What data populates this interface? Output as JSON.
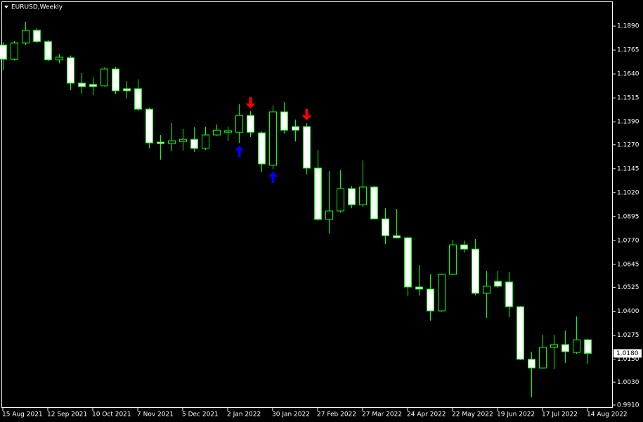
{
  "chart_data": {
    "type": "candlestick",
    "title": "EURUSD,Weekly",
    "categories": [
      "15 Aug 2021",
      null,
      null,
      null,
      "12 Sep 2021",
      null,
      null,
      null,
      "10 Oct 2021",
      null,
      null,
      null,
      "7 Nov 2021",
      null,
      null,
      null,
      "5 Dec 2021",
      null,
      null,
      null,
      "2 Jan 2022",
      null,
      null,
      null,
      "30 Jan 2022",
      null,
      null,
      null,
      "27 Feb 2022",
      null,
      null,
      null,
      "27 Mar 2022",
      null,
      null,
      null,
      "24 Apr 2022",
      null,
      null,
      null,
      "22 May 2022",
      null,
      null,
      null,
      "19 Jun 2022",
      null,
      null,
      null,
      "17 Jul 2022",
      null,
      null,
      null,
      "14 Aug 2022"
    ],
    "open": [
      1.1791,
      1.1717,
      1.1802,
      1.1868,
      1.1809,
      1.1714,
      1.1725,
      1.1592,
      1.1585,
      1.1578,
      1.1666,
      1.1563,
      1.1563,
      1.1456,
      1.1284,
      1.1276,
      1.1287,
      1.1298,
      1.1251,
      1.1321,
      1.1335,
      1.1335,
      1.1423,
      1.1332,
      1.1163,
      1.1442,
      1.1365,
      1.1365,
      1.1148,
      1.088,
      1.0924,
      1.1041,
      1.0957,
      1.1049,
      1.0883,
      1.0795,
      1.0784,
      1.0527,
      1.0516,
      1.0402,
      1.0593,
      1.0747,
      1.0725,
      1.0494,
      1.0556,
      1.0553,
      1.0424,
      1.0149,
      1.0104,
      1.0211,
      1.0226,
      1.0185,
      1.0251
    ],
    "high": [
      1.1806,
      1.1813,
      1.1912,
      1.1879,
      1.1817,
      1.1743,
      1.1736,
      1.1644,
      1.1622,
      1.1673,
      1.1677,
      1.1603,
      1.1611,
      1.1464,
      1.1321,
      1.1383,
      1.1354,
      1.1361,
      1.1365,
      1.1376,
      1.1365,
      1.1482,
      1.1445,
      1.1339,
      1.1475,
      1.1493,
      1.1401,
      1.1383,
      1.1243,
      1.1133,
      1.1137,
      1.1056,
      1.1188,
      1.1056,
      1.0938,
      1.0935,
      1.0788,
      1.0641,
      1.0593,
      1.0597,
      1.0773,
      1.0769,
      1.0777,
      1.0611,
      1.0611,
      1.0604,
      1.0428,
      1.0189,
      1.0277,
      1.0277,
      1.0299,
      1.0373,
      1.0255
    ],
    "low": [
      1.1659,
      1.171,
      1.1791,
      1.1802,
      1.1706,
      1.1695,
      1.1556,
      1.1537,
      1.153,
      1.1574,
      1.1534,
      1.1512,
      1.1445,
      1.1251,
      1.1192,
      1.1236,
      1.124,
      1.1232,
      1.1243,
      1.1317,
      1.1291,
      1.128,
      1.131,
      1.1126,
      1.1144,
      1.1328,
      1.1287,
      1.1115,
      1.0872,
      1.0806,
      1.0916,
      1.0938,
      1.0946,
      1.088,
      1.0751,
      1.078,
      1.0479,
      1.0483,
      1.0351,
      1.0398,
      1.0589,
      1.0707,
      1.0483,
      1.0365,
      1.0523,
      1.0369,
      1.0145,
      0.995,
      1.0101,
      1.0097,
      1.013,
      1.0178,
      1.0126
    ],
    "close": [
      1.1717,
      1.1802,
      1.1868,
      1.1809,
      1.1714,
      1.1728,
      1.1592,
      1.1574,
      1.1574,
      1.1666,
      1.1552,
      1.1552,
      1.1456,
      1.128,
      1.1276,
      1.1291,
      1.1298,
      1.1251,
      1.1321,
      1.1346,
      1.1343,
      1.1423,
      1.1335,
      1.117,
      1.1442,
      1.1346,
      1.1346,
      1.1148,
      1.088,
      1.0924,
      1.1041,
      1.0957,
      1.1049,
      1.0883,
      1.0795,
      1.0784,
      1.0527,
      1.0516,
      1.0402,
      1.0593,
      1.0747,
      1.0725,
      1.0494,
      1.0531,
      1.0531,
      1.0424,
      1.0149,
      1.0104,
      1.0211,
      1.0226,
      1.0189,
      1.0251,
      1.018
    ],
    "up_fill": "#000000",
    "down_fill": "#ffffff",
    "wick_color": "#00ff00",
    "signals_up": [
      21,
      24
    ],
    "signals_up_color": "#0000ff",
    "signals_down": [
      22,
      27
    ],
    "signals_down_color": "#ff0000",
    "ylim": [
      0.9895,
      1.2019
    ],
    "yticks": [
      {
        "value": 1.189,
        "label": "1.1890"
      },
      {
        "value": 1.1765,
        "label": "1.1765"
      },
      {
        "value": 1.164,
        "label": "1.1640"
      },
      {
        "value": 1.1515,
        "label": "1.1515"
      },
      {
        "value": 1.139,
        "label": "1.1390"
      },
      {
        "value": 1.127,
        "label": "1.1270"
      },
      {
        "value": 1.1145,
        "label": "1.1145"
      },
      {
        "value": 1.102,
        "label": "1.1020"
      },
      {
        "value": 1.0895,
        "label": "1.0895"
      },
      {
        "value": 1.077,
        "label": "1.0770"
      },
      {
        "value": 1.0645,
        "label": "1.0645"
      },
      {
        "value": 1.0525,
        "label": "1.0525"
      },
      {
        "value": 1.04,
        "label": "1.0400"
      },
      {
        "value": 1.0275,
        "label": "1.0275"
      },
      {
        "value": 1.015,
        "label": "1.0150"
      },
      {
        "value": 1.003,
        "label": "1.0030"
      },
      {
        "value": 0.991,
        "label": "0.9910"
      }
    ],
    "last_price": {
      "value": 1.018,
      "label": "1.0180"
    },
    "grid": false
  }
}
